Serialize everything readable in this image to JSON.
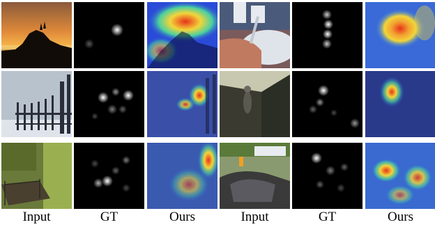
{
  "column_labels": [
    "Input",
    "GT",
    "Ours",
    "Input",
    "GT",
    "Ours"
  ],
  "rows": [
    {
      "left": {
        "input": "sunset-rocks-scene",
        "gt": "saliency-map",
        "ours": "heatmap-overlay"
      },
      "right": {
        "input": "medical-injection-scene",
        "gt": "saliency-map",
        "ours": "heatmap-overlay"
      }
    },
    {
      "left": {
        "input": "snowy-fence-scene",
        "gt": "saliency-map",
        "ours": "heatmap-overlay"
      },
      "right": {
        "input": "memorial-wall-scene",
        "gt": "saliency-map",
        "ours": "heatmap-overlay"
      }
    },
    {
      "left": {
        "input": "abandoned-room-scene",
        "gt": "saliency-map",
        "ours": "heatmap-overlay"
      },
      "right": {
        "input": "car-crash-scene",
        "gt": "saliency-map",
        "ours": "heatmap-overlay"
      }
    }
  ],
  "colors": {
    "heat_hot": "#e8321a",
    "heat_warm": "#f2d53a",
    "heat_cool": "#2a4bd8"
  }
}
